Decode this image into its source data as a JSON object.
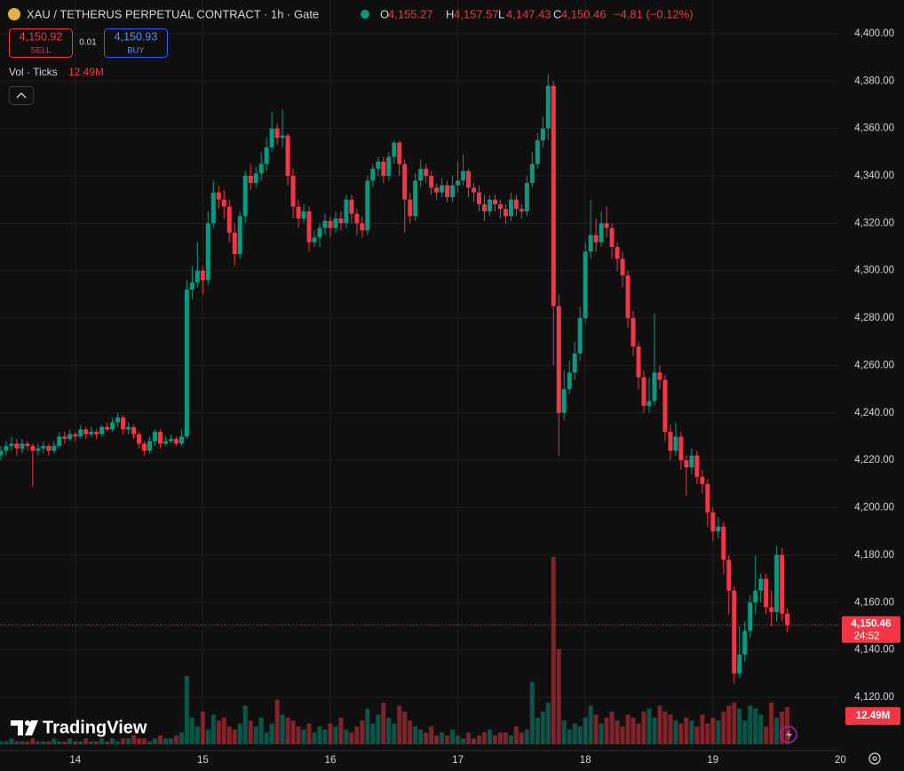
{
  "chart_data": {
    "type": "candlestick",
    "symbol": "XAU / TETHERUS PERPETUAL CONTRACT · 1h · Gate",
    "ohlc_legend": [
      {
        "key": "O",
        "text": "4,155.27"
      },
      {
        "key": "H",
        "text": "4,157.57"
      },
      {
        "key": "L",
        "text": "4,147.43"
      },
      {
        "key": "C",
        "text": "4,150.46"
      }
    ],
    "change": "−4.81 (−0.12%)",
    "sell": {
      "price": "4,150.92",
      "label": "SELL"
    },
    "spread": "0.01",
    "buy": {
      "price": "4,150.93",
      "label": "BUY"
    },
    "volume_legend": {
      "name": "Vol · Ticks",
      "value": "12.49M"
    },
    "brand": "TradingView",
    "up_color": "#089981",
    "down_color": "#f23645",
    "x": [
      13.4167,
      13.4583,
      13.5,
      13.5417,
      13.5833,
      13.625,
      13.6667,
      13.7083,
      13.75,
      13.7917,
      13.8333,
      13.875,
      13.9167,
      13.9583,
      14,
      14.0417,
      14.0833,
      14.125,
      14.1667,
      14.2083,
      14.25,
      14.2917,
      14.3333,
      14.375,
      14.4167,
      14.4583,
      14.5,
      14.5417,
      14.5833,
      14.625,
      14.6667,
      14.7083,
      14.75,
      14.7917,
      14.8333,
      14.875,
      14.9167,
      14.9583,
      15,
      15.0417,
      15.0833,
      15.125,
      15.1667,
      15.2083,
      15.25,
      15.2917,
      15.3333,
      15.375,
      15.4167,
      15.4583,
      15.5,
      15.5417,
      15.5833,
      15.625,
      15.6667,
      15.7083,
      15.75,
      15.7917,
      15.8333,
      15.875,
      15.9167,
      15.9583,
      16,
      16.0417,
      16.0833,
      16.125,
      16.1667,
      16.2083,
      16.25,
      16.2917,
      16.3333,
      16.375,
      16.4167,
      16.4583,
      16.5,
      16.5417,
      16.5833,
      16.625,
      16.6667,
      16.7083,
      16.75,
      16.7917,
      16.8333,
      16.875,
      16.9167,
      16.9583,
      17,
      17.0417,
      17.0833,
      17.125,
      17.1667,
      17.2083,
      17.25,
      17.2917,
      17.3333,
      17.375,
      17.4167,
      17.4583,
      17.5,
      17.5417,
      17.5833,
      17.625,
      17.6667,
      17.7083,
      17.75,
      17.7917,
      17.8333,
      17.875,
      17.9167,
      17.9583,
      18,
      18.0417,
      18.0833,
      18.125,
      18.1667,
      18.2083,
      18.25,
      18.2917,
      18.3333,
      18.375,
      18.4167,
      18.4583,
      18.5,
      18.5417,
      18.5833,
      18.625,
      18.6667,
      18.7083,
      18.75,
      18.7917,
      18.8333,
      18.875,
      18.9167,
      18.9583,
      19,
      19.0417,
      19.0833,
      19.125,
      19.1667,
      19.2083,
      19.25,
      19.2917,
      19.3333,
      19.375,
      19.4167,
      19.4583,
      19.5,
      19.5417,
      19.5833
    ],
    "open": [
      4222,
      4224,
      4226,
      4227,
      4225,
      4227,
      4226,
      4224,
      4225,
      4226,
      4224,
      4226,
      4230,
      4229,
      4231,
      4230,
      4233,
      4231,
      4232,
      4231,
      4234,
      4233,
      4236,
      4238,
      4233,
      4234,
      4231,
      4227,
      4224,
      4228,
      4232,
      4227,
      4228,
      4229,
      4227,
      4230,
      4292,
      4295,
      4300,
      4296,
      4320,
      4333,
      4330,
      4327,
      4316,
      4307,
      4323,
      4340,
      4337,
      4341,
      4345,
      4352,
      4360,
      4356,
      4357,
      4340,
      4327,
      4322,
      4325,
      4312,
      4314,
      4318,
      4321,
      4318,
      4322,
      4320,
      4330,
      4324,
      4320,
      4317,
      4338,
      4343,
      4346,
      4340,
      4348,
      4354,
      4345,
      4330,
      4323,
      4338,
      4343,
      4340,
      4335,
      4333,
      4336,
      4331,
      4336,
      4338,
      4342,
      4335,
      4333,
      4328,
      4325,
      4330,
      4328,
      4326,
      4323,
      4330,
      4326,
      4325,
      4337,
      4345,
      4355,
      4360,
      4378,
      4285,
      4240,
      4250,
      4257,
      4265,
      4280,
      4308,
      4315,
      4312,
      4320,
      4318,
      4310,
      4305,
      4298,
      4280,
      4268,
      4255,
      4243,
      4245,
      4257,
      4254,
      4232,
      4224,
      4230,
      4220,
      4217,
      4222,
      4213,
      4210,
      4198,
      4190,
      4192,
      4178,
      4165,
      4130,
      4138,
      4148,
      4160,
      4165,
      4170,
      4158,
      4156,
      4180,
      4155.27
    ],
    "high": [
      4226,
      4228,
      4230,
      4229,
      4229,
      4228,
      4227,
      4227,
      4228,
      4227,
      4228,
      4232,
      4232,
      4233,
      4232,
      4235,
      4234,
      4234,
      4233,
      4235,
      4236,
      4238,
      4240,
      4239,
      4236,
      4235,
      4232,
      4228,
      4230,
      4233,
      4233,
      4230,
      4231,
      4230,
      4233,
      4296,
      4302,
      4312,
      4302,
      4325,
      4338,
      4336,
      4334,
      4330,
      4320,
      4325,
      4342,
      4345,
      4344,
      4350,
      4356,
      4367,
      4362,
      4368,
      4358,
      4343,
      4330,
      4328,
      4327,
      4317,
      4320,
      4324,
      4323,
      4325,
      4325,
      4332,
      4332,
      4326,
      4323,
      4340,
      4345,
      4348,
      4348,
      4350,
      4355,
      4355,
      4347,
      4333,
      4341,
      4347,
      4345,
      4342,
      4337,
      4339,
      4338,
      4340,
      4346,
      4349,
      4343,
      4337,
      4336,
      4332,
      4332,
      4332,
      4330,
      4328,
      4333,
      4332,
      4328,
      4340,
      4350,
      4358,
      4365,
      4383,
      4380,
      4290,
      4258,
      4262,
      4270,
      4285,
      4312,
      4330,
      4322,
      4325,
      4327,
      4320,
      4312,
      4308,
      4300,
      4283,
      4270,
      4258,
      4255,
      4282,
      4260,
      4256,
      4235,
      4236,
      4232,
      4222,
      4225,
      4224,
      4216,
      4212,
      4200,
      4196,
      4194,
      4180,
      4167,
      4150,
      4152,
      4163,
      4180,
      4172,
      4172,
      4165,
      4184,
      4183,
      4157.57
    ],
    "low": [
      4220,
      4222,
      4224,
      4222,
      4223,
      4224,
      4209,
      4222,
      4223,
      4222,
      4223,
      4225,
      4227,
      4228,
      4228,
      4229,
      4229,
      4230,
      4229,
      4230,
      4232,
      4232,
      4234,
      4231,
      4231,
      4229,
      4225,
      4222,
      4223,
      4226,
      4225,
      4226,
      4227,
      4226,
      4226,
      4229,
      4288,
      4293,
      4290,
      4294,
      4318,
      4326,
      4322,
      4312,
      4302,
      4305,
      4320,
      4334,
      4335,
      4338,
      4342,
      4350,
      4353,
      4352,
      4336,
      4322,
      4318,
      4320,
      4308,
      4310,
      4310,
      4315,
      4314,
      4316,
      4317,
      4318,
      4320,
      4315,
      4314,
      4315,
      4335,
      4340,
      4337,
      4338,
      4345,
      4340,
      4316,
      4320,
      4321,
      4335,
      4337,
      4332,
      4330,
      4331,
      4329,
      4329,
      4333,
      4336,
      4331,
      4329,
      4325,
      4321,
      4323,
      4325,
      4322,
      4320,
      4321,
      4323,
      4322,
      4323,
      4335,
      4343,
      4352,
      4355,
      4260,
      4222,
      4237,
      4248,
      4254,
      4262,
      4278,
      4305,
      4308,
      4310,
      4314,
      4305,
      4300,
      4293,
      4276,
      4264,
      4250,
      4240,
      4240,
      4243,
      4250,
      4228,
      4220,
      4222,
      4216,
      4205,
      4214,
      4210,
      4206,
      4192,
      4186,
      4187,
      4172,
      4155,
      4126,
      4128,
      4135,
      4145,
      4155,
      4160,
      4155,
      4150,
      4152,
      4152,
      4147.43
    ],
    "close": [
      4224,
      4226,
      4227,
      4225,
      4227,
      4226,
      4224,
      4225,
      4226,
      4224,
      4226,
      4230,
      4229,
      4231,
      4230,
      4233,
      4231,
      4232,
      4231,
      4234,
      4233,
      4236,
      4238,
      4233,
      4234,
      4231,
      4227,
      4224,
      4228,
      4232,
      4227,
      4228,
      4229,
      4227,
      4230,
      4292,
      4295,
      4300,
      4296,
      4320,
      4333,
      4330,
      4327,
      4316,
      4307,
      4323,
      4340,
      4337,
      4341,
      4345,
      4352,
      4360,
      4356,
      4357,
      4340,
      4327,
      4322,
      4325,
      4312,
      4314,
      4318,
      4321,
      4318,
      4322,
      4320,
      4330,
      4324,
      4320,
      4317,
      4338,
      4343,
      4346,
      4340,
      4348,
      4354,
      4345,
      4330,
      4323,
      4338,
      4343,
      4340,
      4335,
      4333,
      4336,
      4331,
      4336,
      4338,
      4342,
      4335,
      4333,
      4328,
      4325,
      4330,
      4328,
      4326,
      4323,
      4330,
      4326,
      4325,
      4337,
      4345,
      4355,
      4360,
      4378,
      4285,
      4240,
      4250,
      4257,
      4265,
      4280,
      4308,
      4315,
      4312,
      4320,
      4318,
      4310,
      4305,
      4298,
      4280,
      4268,
      4255,
      4243,
      4245,
      4257,
      4254,
      4232,
      4224,
      4230,
      4220,
      4217,
      4222,
      4213,
      4210,
      4198,
      4190,
      4192,
      4178,
      4165,
      4130,
      4138,
      4148,
      4160,
      4165,
      4170,
      4158,
      4156,
      4180,
      4155.27,
      4150.46
    ],
    "volume": [
      1,
      1,
      2,
      1,
      1,
      1,
      2,
      1,
      1,
      1,
      2,
      1,
      1,
      2,
      1,
      1,
      2,
      1,
      1,
      2,
      1,
      2,
      1,
      2,
      2,
      3,
      2,
      2,
      1,
      2,
      3,
      2,
      2,
      3,
      4,
      23,
      9,
      6,
      11,
      5,
      10,
      8,
      9,
      6,
      5,
      7,
      13,
      8,
      6,
      9,
      4,
      7,
      15,
      10,
      9,
      8,
      6,
      5,
      7,
      4,
      6,
      5,
      7,
      6,
      9,
      5,
      4,
      6,
      8,
      12,
      7,
      10,
      14,
      9,
      7,
      13,
      11,
      8,
      6,
      5,
      4,
      6,
      3,
      4,
      3,
      5,
      3,
      2,
      4,
      2,
      3,
      4,
      5,
      3,
      4,
      4,
      3,
      6,
      4,
      5,
      21,
      9,
      11,
      14,
      63,
      32,
      8,
      5,
      7,
      6,
      9,
      13,
      10,
      7,
      9,
      11,
      8,
      6,
      10,
      9,
      7,
      11,
      12,
      9,
      13,
      11,
      10,
      8,
      7,
      9,
      8,
      6,
      10,
      7,
      9,
      8,
      11,
      13,
      14,
      12,
      8,
      13,
      12,
      10,
      6,
      14,
      9,
      11,
      12.49
    ],
    "vlim": [
      0,
      80
    ],
    "xlim": [
      13.41,
      19.99
    ],
    "xticks": [
      14,
      15,
      16,
      17,
      18,
      19,
      20
    ],
    "ylim": [
      4097.5,
      4414.2
    ],
    "yticks": [
      {
        "value": 4120,
        "label": "4,120.00"
      },
      {
        "value": 4140,
        "label": "4,140.00"
      },
      {
        "value": 4160,
        "label": "4,160.00"
      },
      {
        "value": 4180,
        "label": "4,180.00"
      },
      {
        "value": 4200,
        "label": "4,200.00"
      },
      {
        "value": 4220,
        "label": "4,220.00"
      },
      {
        "value": 4240,
        "label": "4,240.00"
      },
      {
        "value": 4260,
        "label": "4,260.00"
      },
      {
        "value": 4280,
        "label": "4,280.00"
      },
      {
        "value": 4300,
        "label": "4,300.00"
      },
      {
        "value": 4320,
        "label": "4,320.00"
      },
      {
        "value": 4340,
        "label": "4,340.00"
      },
      {
        "value": 4360,
        "label": "4,360.00"
      },
      {
        "value": 4380,
        "label": "4,380.00"
      },
      {
        "value": 4400,
        "label": "4,400.00"
      }
    ],
    "grid": true,
    "price_line": {
      "value": 4150.46,
      "label": "4,150.46"
    },
    "countdown": "24:52",
    "current_volume": {
      "value": 12.49,
      "label": "12.49M"
    }
  }
}
